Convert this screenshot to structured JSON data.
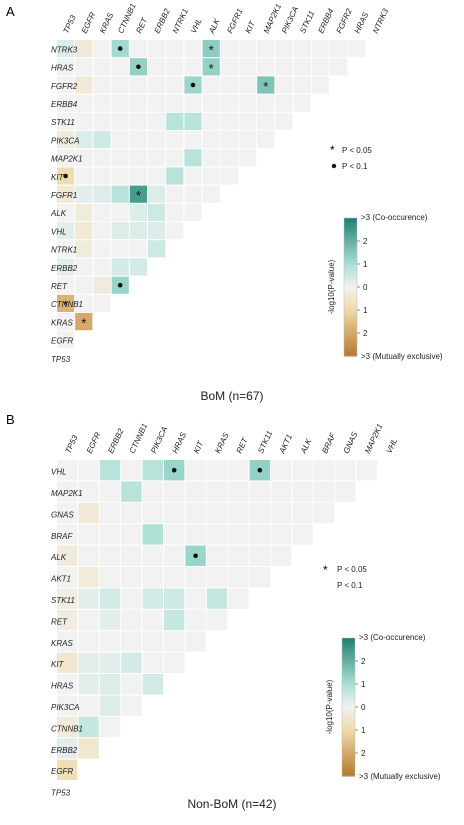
{
  "colors": {
    "co_occurrence_strong": "#1f7f6f",
    "co_occurrence_mid": "#a8dfd4",
    "neutral": "#f2f2f2",
    "exclusive_mid": "#efd9a9",
    "exclusive_strong": "#b8792a"
  },
  "legend": {
    "sym_p005": "P < 0.05",
    "sym_p01": "P < 0.1",
    "colorbar_title": "-log10(P-value)",
    "top_label": ">3 (Co-occurence)",
    "bottom_label": ">3 (Mutually exclusive)",
    "ticks": [
      "2",
      "1",
      "0",
      "1",
      "2"
    ]
  },
  "chart_data": [
    {
      "type": "heatmap",
      "panel_letter": "A",
      "caption": "BoM (n=67)",
      "rows": [
        "NTRK3",
        "HRAS",
        "FGFR2",
        "ERBB4",
        "STK11",
        "PIK3CA",
        "MAP2K1",
        "KIT",
        "FGFR1",
        "ALK",
        "VHL",
        "NTRK1",
        "ERBB2",
        "RET",
        "CTNNB1",
        "KRAS",
        "EGFR",
        "TP53"
      ],
      "cols": [
        "TP53",
        "EGFR",
        "KRAS",
        "CTNNB1",
        "RET",
        "ERBB2",
        "NTRK1",
        "VHL",
        "ALK",
        "FGFR1",
        "KIT",
        "MAP2K1",
        "PIK3CA",
        "STK11",
        "ERBB4",
        "FGFR2",
        "HRAS",
        "NTRK3"
      ],
      "values": [
        [
          0.3,
          -0.4,
          0,
          1.1,
          0,
          0,
          0,
          0,
          1.4,
          0,
          0,
          0,
          0,
          0,
          0,
          0,
          0
        ],
        [
          0,
          0,
          0,
          0,
          1.3,
          0,
          0,
          0,
          1.3,
          0,
          0,
          0,
          0,
          0,
          0,
          0
        ],
        [
          0,
          -0.4,
          0,
          0,
          0,
          0,
          0,
          1.2,
          0,
          0,
          0,
          1.6,
          0,
          0,
          0
        ],
        [
          0,
          0,
          0,
          0,
          0,
          0,
          0,
          0,
          0,
          0,
          0,
          0,
          0,
          0
        ],
        [
          0,
          0,
          0,
          0,
          0,
          0,
          0.8,
          0.8,
          0,
          0,
          0,
          0,
          0
        ],
        [
          -0.3,
          0.3,
          0.5,
          0,
          0,
          0,
          0,
          0,
          0,
          0,
          0,
          0
        ],
        [
          0,
          0,
          0,
          0,
          0,
          0,
          0,
          0.8,
          0,
          0,
          0
        ],
        [
          -0.9,
          0,
          0,
          0,
          0,
          0,
          0.8,
          0,
          0,
          0
        ],
        [
          -0.4,
          0.2,
          0.3,
          0.8,
          2.4,
          0.3,
          0,
          0,
          0
        ],
        [
          0,
          -0.3,
          0,
          0,
          0.3,
          0.5,
          0,
          0
        ],
        [
          0.2,
          -0.4,
          0,
          0.3,
          0.3,
          0.3,
          0
        ],
        [
          0,
          -0.3,
          0,
          0,
          0,
          0.5
        ],
        [
          0.2,
          0,
          0,
          0.4,
          0.4
        ],
        [
          0,
          0,
          -0.3,
          1.2
        ],
        [
          -1.8,
          0,
          0
        ],
        [
          0,
          -2.0
        ],
        [
          0
        ]
      ],
      "significance": [
        {
          "row": "NTRK3",
          "col": "CTNNB1",
          "p": "<0.1"
        },
        {
          "row": "NTRK3",
          "col": "ALK",
          "p": "<0.05"
        },
        {
          "row": "HRAS",
          "col": "RET",
          "p": "<0.1"
        },
        {
          "row": "HRAS",
          "col": "ALK",
          "p": "<0.05"
        },
        {
          "row": "FGFR2",
          "col": "VHL",
          "p": "<0.1"
        },
        {
          "row": "FGFR2",
          "col": "MAP2K1",
          "p": "<0.05"
        },
        {
          "row": "KIT",
          "col": "TP53",
          "p": "<0.1"
        },
        {
          "row": "FGFR1",
          "col": "RET",
          "p": "<0.05"
        },
        {
          "row": "RET",
          "col": "CTNNB1",
          "p": "<0.1"
        },
        {
          "row": "CTNNB1",
          "col": "TP53",
          "p": "<0.05"
        },
        {
          "row": "KRAS",
          "col": "EGFR",
          "p": "<0.05"
        }
      ],
      "value_range": [
        -3,
        3
      ]
    },
    {
      "type": "heatmap",
      "panel_letter": "B",
      "caption": "Non-BoM (n=42)",
      "rows": [
        "VHL",
        "MAP2K1",
        "GNAS",
        "BRAF",
        "ALK",
        "AKT1",
        "STK11",
        "RET",
        "KRAS",
        "KIT",
        "HRAS",
        "PIK3CA",
        "CTNNB1",
        "ERBB2",
        "EGFR",
        "TP53"
      ],
      "cols": [
        "TP53",
        "EGFR",
        "ERBB2",
        "CTNNB1",
        "PIK3CA",
        "HRAS",
        "KIT",
        "KRAS",
        "RET",
        "STK11",
        "AKT1",
        "ALK",
        "BRAF",
        "GNAS",
        "MAP2K1",
        "VHL"
      ],
      "values": [
        [
          0,
          0,
          0.8,
          0,
          0.8,
          1.2,
          0,
          0,
          0,
          1.3,
          0,
          0,
          0,
          0,
          0
        ],
        [
          0,
          0,
          0,
          0.8,
          0,
          0,
          0,
          0,
          0,
          0,
          0,
          0,
          0,
          0
        ],
        [
          0,
          -0.4,
          0,
          0,
          0,
          0,
          0,
          0,
          0,
          0,
          0,
          0,
          0
        ],
        [
          0,
          0,
          0,
          0,
          0.9,
          0,
          0,
          0,
          0,
          0,
          0,
          0
        ],
        [
          -0.3,
          0,
          0,
          0,
          0,
          0,
          1.2,
          0,
          0,
          0,
          0
        ],
        [
          0,
          -0.3,
          0,
          0,
          0,
          0,
          0,
          0,
          0,
          0
        ],
        [
          -0.2,
          0.2,
          0.4,
          0,
          0.4,
          0.5,
          0,
          0.6,
          0
        ],
        [
          -0.2,
          0,
          0.2,
          0,
          0,
          0.6,
          0,
          0
        ],
        [
          0,
          0,
          0,
          0,
          0,
          0,
          0
        ],
        [
          -0.5,
          0.2,
          0.2,
          0.4,
          0,
          0
        ],
        [
          0,
          0.2,
          0.3,
          0,
          0.4
        ],
        [
          0,
          0,
          0.3,
          0
        ],
        [
          -0.3,
          0.6,
          0
        ],
        [
          0.2,
          -0.5
        ],
        [
          -0.8
        ]
      ],
      "significance": [
        {
          "row": "VHL",
          "col": "HRAS",
          "p": "<0.1"
        },
        {
          "row": "VHL",
          "col": "STK11",
          "p": "<0.1"
        },
        {
          "row": "ALK",
          "col": "KIT",
          "p": "<0.1"
        }
      ],
      "value_range": [
        -3,
        3
      ]
    }
  ]
}
